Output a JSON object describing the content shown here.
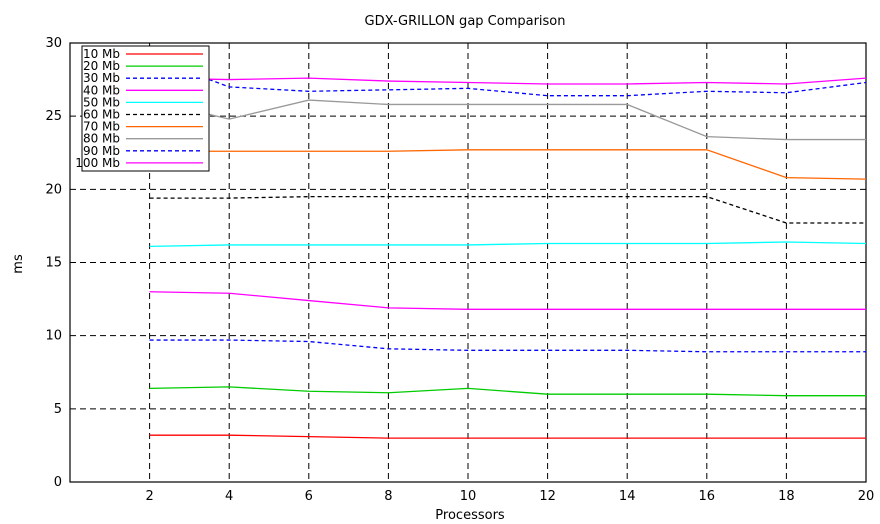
{
  "chart_data": {
    "type": "line",
    "title": "GDX-GRILLON gap Comparison",
    "xlabel": "Processors",
    "ylabel": "ms",
    "xlim": [
      0,
      20
    ],
    "ylim": [
      0,
      30
    ],
    "x_ticks": [
      2,
      4,
      6,
      8,
      10,
      12,
      14,
      16,
      18,
      20
    ],
    "y_ticks": [
      0,
      5,
      10,
      15,
      20,
      25,
      30
    ],
    "grid": true,
    "legend_position": "top-left",
    "x": [
      2,
      4,
      6,
      8,
      10,
      12,
      14,
      16,
      18,
      20
    ],
    "series": [
      {
        "name": "10 Mb",
        "color": "#ff0000",
        "dash": "solid",
        "values": [
          3.2,
          3.2,
          3.1,
          3.0,
          3.0,
          3.0,
          3.0,
          3.0,
          3.0,
          3.0
        ]
      },
      {
        "name": "20 Mb",
        "color": "#00cc00",
        "dash": "solid",
        "values": [
          6.4,
          6.5,
          6.2,
          6.1,
          6.4,
          6.0,
          6.0,
          6.0,
          5.9,
          5.9
        ]
      },
      {
        "name": "30 Mb",
        "color": "#0000ff",
        "dash": "dashed",
        "values": [
          9.7,
          9.7,
          9.6,
          9.1,
          9.0,
          9.0,
          9.0,
          8.9,
          8.9,
          8.9
        ]
      },
      {
        "name": "40 Mb",
        "color": "#ff00ff",
        "dash": "solid",
        "values": [
          13.0,
          12.9,
          12.4,
          11.9,
          11.8,
          11.8,
          11.8,
          11.8,
          11.8,
          11.8
        ]
      },
      {
        "name": "50 Mb",
        "color": "#00ffff",
        "dash": "solid",
        "values": [
          16.1,
          16.2,
          16.2,
          16.2,
          16.2,
          16.3,
          16.3,
          16.3,
          16.4,
          16.3
        ]
      },
      {
        "name": "60 Mb",
        "color": "#000000",
        "dash": "dashed",
        "values": [
          19.4,
          19.4,
          19.5,
          19.5,
          19.5,
          19.5,
          19.5,
          19.5,
          17.7,
          17.7
        ]
      },
      {
        "name": "70 Mb",
        "color": "#ff6600",
        "dash": "solid",
        "values": [
          22.6,
          22.6,
          22.6,
          22.6,
          22.7,
          22.7,
          22.7,
          22.7,
          20.8,
          20.7
        ]
      },
      {
        "name": "80 Mb",
        "color": "#999999",
        "dash": "solid",
        "values": [
          26.1,
          24.8,
          26.1,
          25.8,
          25.8,
          25.8,
          25.8,
          23.6,
          23.4,
          23.4
        ]
      },
      {
        "name": "90 Mb",
        "color": "#0000ff",
        "dash": "dashed",
        "values": [
          29.0,
          27.0,
          26.7,
          26.8,
          26.9,
          26.4,
          26.4,
          26.7,
          26.6,
          27.3
        ]
      },
      {
        "name": "100 Mb",
        "color": "#ff00ff",
        "dash": "solid",
        "values": [
          27.6,
          27.5,
          27.6,
          27.4,
          27.3,
          27.2,
          27.2,
          27.3,
          27.2,
          27.6
        ]
      }
    ]
  }
}
